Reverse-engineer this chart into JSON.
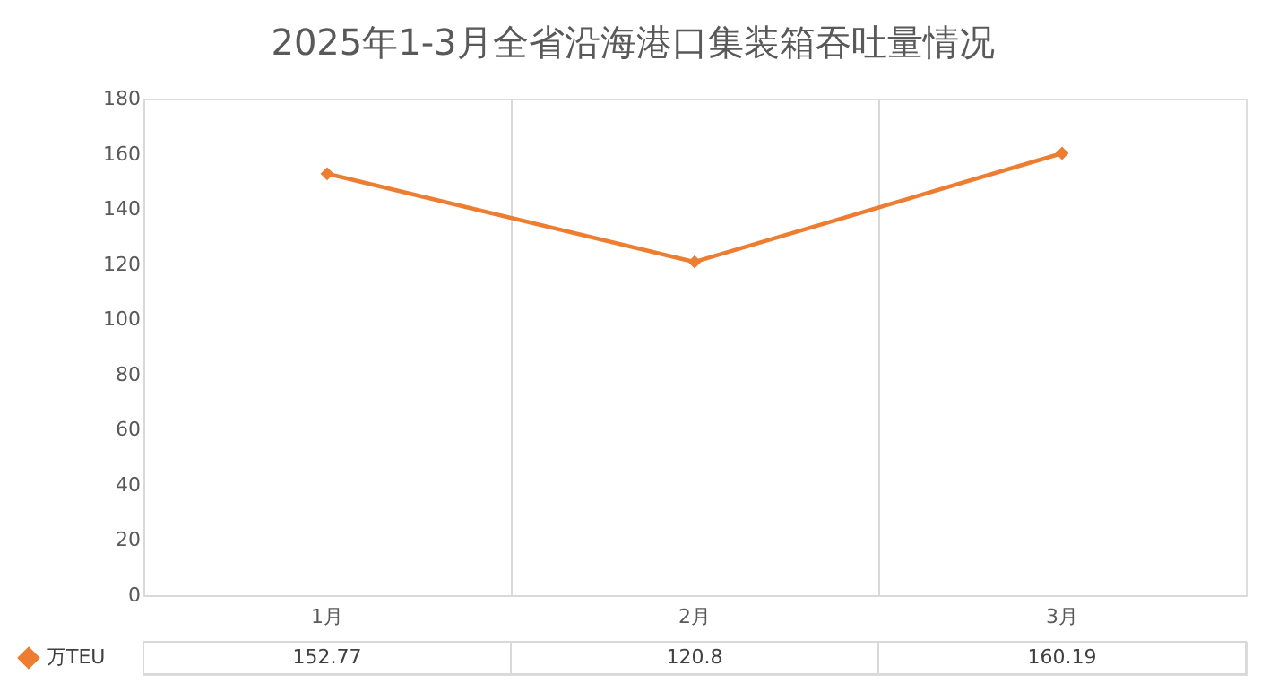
{
  "chart_data": {
    "type": "line",
    "title": "2025年1-3月全省沿海港口集装箱吞吐量情况",
    "categories": [
      "1月",
      "2月",
      "3月"
    ],
    "series": [
      {
        "name": "万TEU",
        "color": "#ed7d31",
        "values": [
          152.77,
          120.8,
          160.19
        ]
      }
    ],
    "ylim": [
      0,
      180
    ],
    "yticks": [
      0,
      20,
      40,
      60,
      80,
      100,
      120,
      140,
      160,
      180
    ],
    "grid": "x",
    "legend": "bottom left",
    "marker": "diamond",
    "line_style": "solid",
    "data_labels": true
  }
}
